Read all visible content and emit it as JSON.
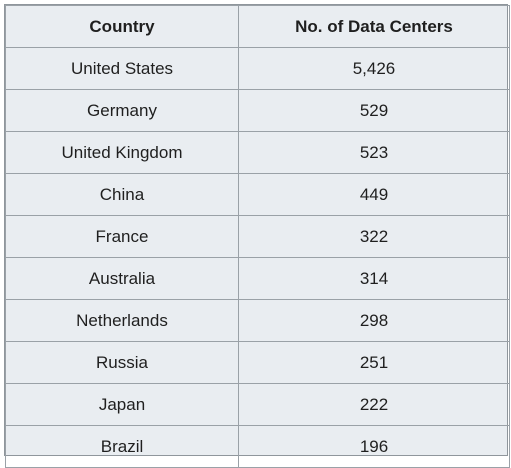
{
  "chart_data": {
    "type": "table",
    "columns": [
      "Country",
      "No. of Data Centers"
    ],
    "rows": [
      [
        "United States",
        "5,426"
      ],
      [
        "Germany",
        "529"
      ],
      [
        "United Kingdom",
        "523"
      ],
      [
        "China",
        "449"
      ],
      [
        "France",
        "322"
      ],
      [
        "Australia",
        "314"
      ],
      [
        "Netherlands",
        "298"
      ],
      [
        "Russia",
        "251"
      ],
      [
        "Japan",
        "222"
      ],
      [
        "Brazil",
        "196"
      ]
    ]
  }
}
